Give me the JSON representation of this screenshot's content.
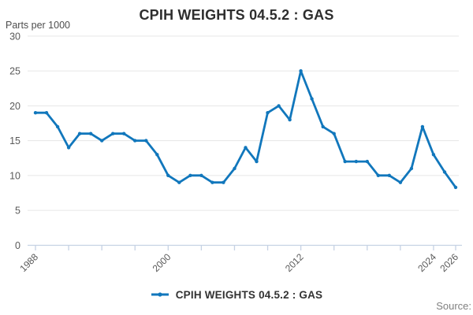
{
  "header": {
    "title": "CPIH WEIGHTS 04.5.2 : GAS",
    "y_axis_unit": "Parts per 1000"
  },
  "legend": {
    "label": "CPIH WEIGHTS 04.5.2 : GAS"
  },
  "footer": {
    "source_label": "Source:"
  },
  "colors": {
    "line": "#1177bc",
    "marker": "#1177bc",
    "axis": "#c6d2e4",
    "grid": "#e6e6e6",
    "tick_text": "#595959",
    "title_text": "#2e2e2e",
    "source_text": "#808080"
  },
  "chart_data": {
    "type": "line",
    "title": "CPIH WEIGHTS 04.5.2 : GAS",
    "ylabel": "Parts per 1000",
    "xlabel": "",
    "x": [
      1988,
      1989,
      1990,
      1991,
      1992,
      1993,
      1994,
      1995,
      1996,
      1997,
      1998,
      1999,
      2000,
      2001,
      2002,
      2003,
      2004,
      2005,
      2006,
      2007,
      2008,
      2009,
      2010,
      2011,
      2012,
      2013,
      2014,
      2015,
      2016,
      2017,
      2018,
      2019,
      2020,
      2021,
      2022,
      2023,
      2024,
      2025,
      2026
    ],
    "series": [
      {
        "name": "CPIH WEIGHTS 04.5.2 : GAS",
        "values": [
          19,
          19,
          17,
          14,
          16,
          16,
          15,
          16,
          16,
          15,
          15,
          13,
          10,
          9,
          10,
          10,
          9,
          9,
          11,
          14,
          12,
          19,
          20,
          18,
          25,
          21,
          17,
          16,
          12,
          12,
          12,
          10,
          10,
          9,
          11,
          17,
          13,
          10.5,
          8.3
        ]
      }
    ],
    "ylim": [
      0,
      30
    ],
    "y_ticks": [
      0,
      5,
      10,
      15,
      20,
      25,
      30
    ],
    "x_ticks": [
      1988,
      1991,
      1994,
      1997,
      2000,
      2003,
      2006,
      2009,
      2012,
      2015,
      2018,
      2021,
      2024,
      2026
    ],
    "x_tick_labels_shown": [
      1988,
      2000,
      2012,
      2024,
      2026
    ],
    "grid": "horizontal",
    "legend_position": "bottom",
    "marker_style": "dot"
  }
}
